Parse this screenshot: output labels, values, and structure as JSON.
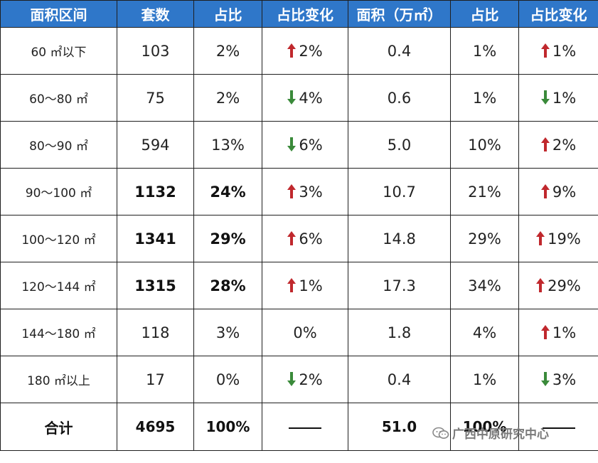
{
  "table": {
    "columns": [
      "面积区间",
      "套数",
      "占比",
      "占比变化",
      "面积（万㎡）",
      "占比",
      "占比变化"
    ],
    "rows": [
      {
        "range": "60 ㎡以下",
        "count": "103",
        "share": "2%",
        "share_change": {
          "dir": "up",
          "value": "2%"
        },
        "area": "0.4",
        "area_share": "1%",
        "area_change": {
          "dir": "up",
          "value": "1%"
        },
        "bold": false
      },
      {
        "range": "60～80 ㎡",
        "count": "75",
        "share": "2%",
        "share_change": {
          "dir": "down",
          "value": "4%"
        },
        "area": "0.6",
        "area_share": "1%",
        "area_change": {
          "dir": "down",
          "value": "1%"
        },
        "bold": false
      },
      {
        "range": "80～90 ㎡",
        "count": "594",
        "share": "13%",
        "share_change": {
          "dir": "down",
          "value": "6%"
        },
        "area": "5.0",
        "area_share": "10%",
        "area_change": {
          "dir": "up",
          "value": "2%"
        },
        "bold": false
      },
      {
        "range": "90～100 ㎡",
        "count": "1132",
        "share": "24%",
        "share_change": {
          "dir": "up",
          "value": "3%"
        },
        "area": "10.7",
        "area_share": "21%",
        "area_change": {
          "dir": "up",
          "value": "9%"
        },
        "bold": true
      },
      {
        "range": "100～120 ㎡",
        "count": "1341",
        "share": "29%",
        "share_change": {
          "dir": "up",
          "value": "6%"
        },
        "area": "14.8",
        "area_share": "29%",
        "area_change": {
          "dir": "up",
          "value": "19%"
        },
        "bold": true
      },
      {
        "range": "120～144 ㎡",
        "count": "1315",
        "share": "28%",
        "share_change": {
          "dir": "up",
          "value": "1%"
        },
        "area": "17.3",
        "area_share": "34%",
        "area_change": {
          "dir": "up",
          "value": "29%"
        },
        "bold": true
      },
      {
        "range": "144～180 ㎡",
        "count": "118",
        "share": "3%",
        "share_change": {
          "dir": "none",
          "value": "0%"
        },
        "area": "1.8",
        "area_share": "4%",
        "area_change": {
          "dir": "up",
          "value": "1%"
        },
        "bold": false
      },
      {
        "range": "180 ㎡以上",
        "count": "17",
        "share": "0%",
        "share_change": {
          "dir": "down",
          "value": "2%"
        },
        "area": "0.4",
        "area_share": "1%",
        "area_change": {
          "dir": "down",
          "value": "3%"
        },
        "bold": false
      }
    ],
    "total": {
      "label": "合计",
      "count": "4695",
      "share": "100%",
      "area": "51.0",
      "area_share": "100%"
    }
  },
  "watermark": {
    "text": "广西中原研究中心",
    "icon": "wechat-icon"
  },
  "colors": {
    "header_bg": "#2f77c9",
    "header_text": "#ffffff",
    "arrow_up": "#c0282d",
    "arrow_down": "#3a8a3a"
  }
}
